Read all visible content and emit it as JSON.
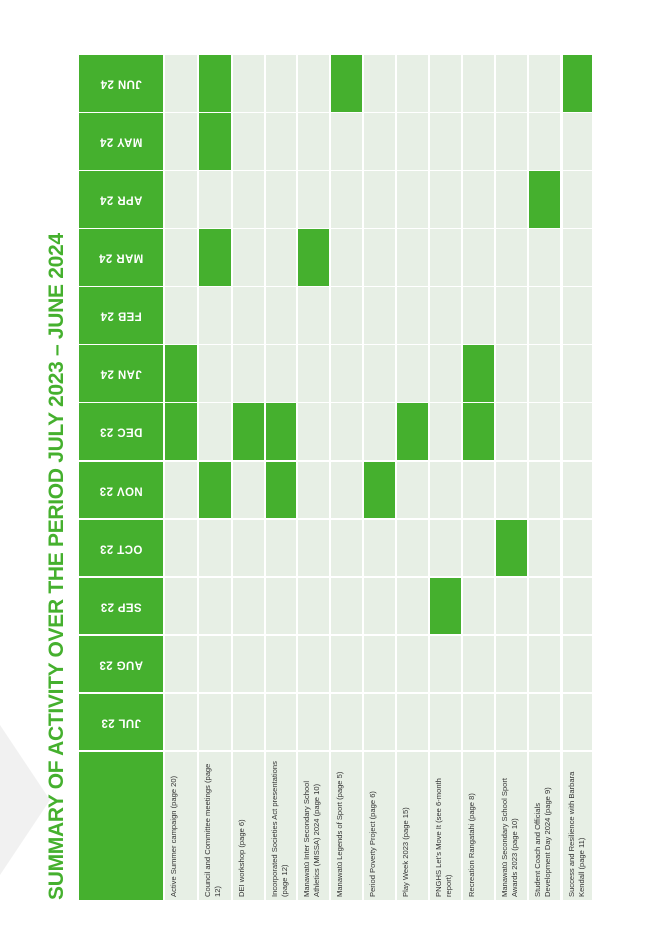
{
  "title": "SUMMARY OF ACTIVITY OVER THE PERIOD JULY 2023 – JUNE 2024",
  "months": [
    "JUL 23",
    "AUG 23",
    "SEP 23",
    "OCT 23",
    "NOV 23",
    "DEC 23",
    "JAN 24",
    "FEB 24",
    "MAR 24",
    "APR 24",
    "MAY 24",
    "JUN 24"
  ],
  "colors": {
    "accent": "#45b02e",
    "cell_bg": "#e7efe5",
    "text": "#333333"
  },
  "activities": [
    {
      "label": "Active Summer campaign (page 20)",
      "active": [
        "DEC 23",
        "JAN 24"
      ]
    },
    {
      "label": "Council and Committee meetings (page 12)",
      "active": [
        "NOV 23",
        "MAR 24",
        "MAY 24",
        "JUN 24"
      ]
    },
    {
      "label": "DEI workshop (page 6)",
      "active": [
        "DEC 23"
      ]
    },
    {
      "label": "Incorporated Societies Act presentations (page 12)",
      "active": [
        "NOV 23",
        "DEC 23"
      ]
    },
    {
      "label": "Manawatū Inter Secondary School Athletics (MISSA) 2024 (page 10)",
      "active": [
        "MAR 24"
      ]
    },
    {
      "label": "Manawatū Legends of Sport (page 5)",
      "active": [
        "JUN 24"
      ]
    },
    {
      "label": "Period Poverty Project (page 6)",
      "active": [
        "NOV 23"
      ]
    },
    {
      "label": "Play Week 2023 (page 15)",
      "active": [
        "DEC 23"
      ]
    },
    {
      "label": "PNGHS Let’s Move It (see 6-month report)",
      "active": [
        "SEP 23"
      ]
    },
    {
      "label": "Recreation Rangatahi (page 8)",
      "active": [
        "DEC 23",
        "JAN 24"
      ]
    },
    {
      "label": "Manawatū Secondary School Sport Awards 2023 (page 10)",
      "active": [
        "OCT 23"
      ]
    },
    {
      "label": "Student Coach and Officials Development Day 2024 (page 9)",
      "active": [
        "APR 24"
      ]
    },
    {
      "label": "Success and Resilience with Barbara Kendall (page 11)",
      "active": [
        "JUN 24"
      ]
    }
  ]
}
